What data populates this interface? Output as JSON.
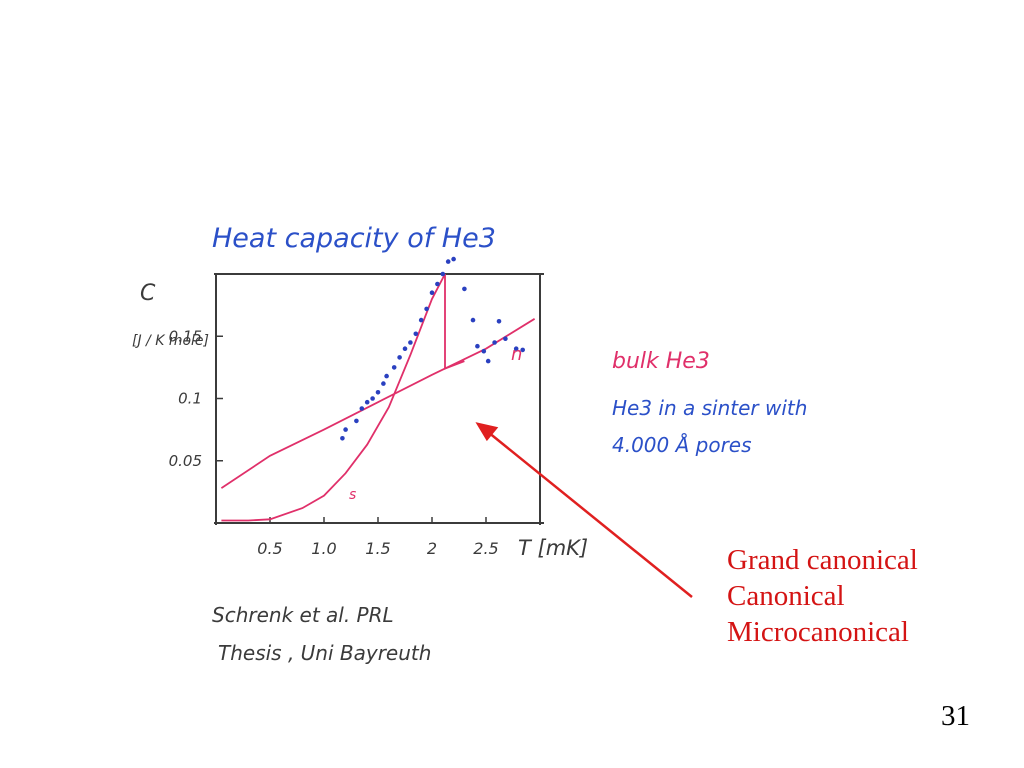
{
  "slide": {
    "page_number": "31"
  },
  "notes": [
    "Grand canonical",
    "Canonical",
    "Microcanonical"
  ],
  "citation": [
    "Schrenk et al.  PRL",
    "Thesis , Uni Bayreuth"
  ],
  "colors": {
    "title": "#2b50c8",
    "ink": "#3b3b3b",
    "data_points": "#2a40c0",
    "curves": "#e0306a",
    "arrow": "#e02020",
    "notes": "#d41414"
  },
  "chart_data": {
    "type": "scatter",
    "title": "Heat capacity of He3",
    "ylabel": "C",
    "yunit": "[J / K mole]",
    "xlabel": "T [mK]",
    "xlim": [
      0,
      3.0
    ],
    "ylim": [
      0,
      0.2
    ],
    "x_ticks": [
      "0.5",
      "1.0",
      "1.5",
      "2",
      "2.5"
    ],
    "y_ticks": [
      "0.05",
      "0.1",
      "0.15"
    ],
    "legend": [
      {
        "label": "bulk He3",
        "color": "#e0306a"
      },
      {
        "label": "He3 in a sinter with",
        "color": "#2b50c8"
      },
      {
        "label": "4.000 Å pores",
        "color": "#2b50c8"
      }
    ],
    "curve_labels": {
      "normal": "n",
      "superfluid": "s"
    },
    "series": [
      {
        "name": "He3 in a sinter with 4.000 Å pores",
        "style": "points",
        "x": [
          1.17,
          1.2,
          1.3,
          1.35,
          1.4,
          1.45,
          1.5,
          1.55,
          1.58,
          1.65,
          1.7,
          1.75,
          1.8,
          1.85,
          1.9,
          1.95,
          2.0,
          2.05,
          2.1,
          2.15,
          2.2,
          2.3,
          2.38,
          2.42,
          2.48,
          2.52,
          2.58,
          2.62,
          2.68,
          2.78,
          2.84
        ],
        "y": [
          0.068,
          0.075,
          0.082,
          0.092,
          0.097,
          0.1,
          0.105,
          0.112,
          0.118,
          0.125,
          0.133,
          0.14,
          0.145,
          0.152,
          0.163,
          0.172,
          0.185,
          0.192,
          0.2,
          0.21,
          0.212,
          0.188,
          0.163,
          0.142,
          0.138,
          0.13,
          0.145,
          0.162,
          0.148,
          0.14,
          0.139
        ]
      },
      {
        "name": "bulk He3 normal",
        "style": "line",
        "x": [
          0.05,
          0.5,
          1.0,
          1.5,
          2.0,
          2.5,
          2.95
        ],
        "y": [
          0.028,
          0.054,
          0.075,
          0.097,
          0.119,
          0.14,
          0.164
        ]
      },
      {
        "name": "bulk He3 superfluid",
        "style": "line",
        "x": [
          0.05,
          0.3,
          0.5,
          0.8,
          1.0,
          1.2,
          1.4,
          1.6,
          1.8,
          2.0,
          2.12,
          2.12,
          2.3
        ],
        "y": [
          0.002,
          0.002,
          0.003,
          0.012,
          0.022,
          0.04,
          0.063,
          0.093,
          0.135,
          0.18,
          0.2,
          0.124,
          0.13
        ]
      }
    ]
  }
}
